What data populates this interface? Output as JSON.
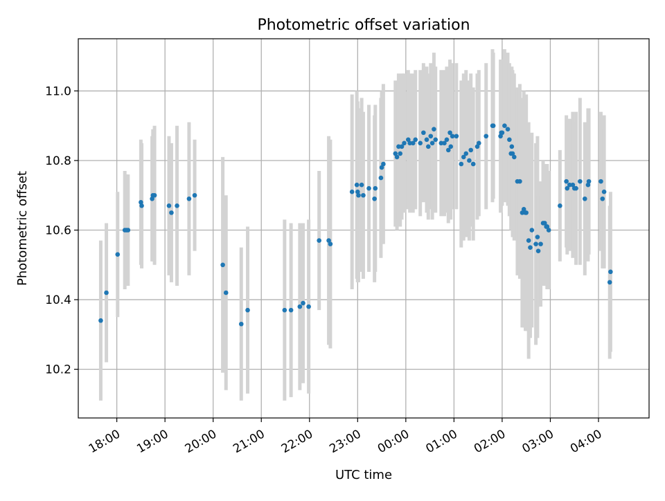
{
  "chart_data": {
    "type": "scatter",
    "title": "Photometric offset variation",
    "xlabel": "UTC time",
    "ylabel": "Photometric offset",
    "x_tick_labels": [
      "18:00",
      "19:00",
      "20:00",
      "21:00",
      "22:00",
      "23:00",
      "00:00",
      "01:00",
      "02:00",
      "03:00",
      "04:00"
    ],
    "y_tick_labels": [
      "10.2",
      "10.4",
      "10.6",
      "10.8",
      "11.0"
    ],
    "y_ticks": [
      10.2,
      10.4,
      10.6,
      10.8,
      11.0
    ],
    "xlim": [
      "17:12",
      "05:03"
    ],
    "ylim": [
      10.06,
      11.15
    ],
    "grid": true,
    "colors": {
      "points": "#1f77b4",
      "errorbars": "#d3d3d3",
      "grid": "#b0b0b0"
    },
    "series": [
      {
        "points": [
          [
            "17:40",
            10.34,
            0.23
          ],
          [
            "17:47",
            10.42,
            0.2
          ],
          [
            "18:01",
            10.53,
            0.18
          ],
          [
            "18:10",
            10.6,
            0.17
          ],
          [
            "18:12",
            10.6,
            0.16
          ],
          [
            "18:14",
            10.6,
            0.16
          ],
          [
            "18:30",
            10.68,
            0.18
          ],
          [
            "18:31",
            10.67,
            0.18
          ],
          [
            "18:44",
            10.69,
            0.18
          ],
          [
            "18:45",
            10.7,
            0.19
          ],
          [
            "18:47",
            10.7,
            0.2
          ],
          [
            "19:05",
            10.67,
            0.2
          ],
          [
            "19:08",
            10.65,
            0.2
          ],
          [
            "19:15",
            10.67,
            0.23
          ],
          [
            "19:30",
            10.69,
            0.22
          ],
          [
            "19:37",
            10.7,
            0.16
          ],
          [
            "20:12",
            10.5,
            0.31
          ],
          [
            "20:16",
            10.42,
            0.28
          ],
          [
            "20:35",
            10.33,
            0.22
          ],
          [
            "20:43",
            10.37,
            0.24
          ],
          [
            "21:29",
            10.37,
            0.26
          ],
          [
            "21:37",
            10.37,
            0.25
          ],
          [
            "21:48",
            10.38,
            0.24
          ],
          [
            "21:52",
            10.39,
            0.23
          ],
          [
            "21:59",
            10.38,
            0.25
          ],
          [
            "22:12",
            10.57,
            0.2
          ],
          [
            "22:24",
            10.57,
            0.3
          ],
          [
            "22:26",
            10.56,
            0.3
          ],
          [
            "22:53",
            10.71,
            0.28
          ],
          [
            "22:59",
            10.73,
            0.27
          ],
          [
            "23:00",
            10.71,
            0.26
          ],
          [
            "23:01",
            10.7,
            0.25
          ],
          [
            "23:05",
            10.73,
            0.25
          ],
          [
            "23:07",
            10.7,
            0.24
          ],
          [
            "23:14",
            10.72,
            0.24
          ],
          [
            "23:21",
            10.69,
            0.24
          ],
          [
            "23:22",
            10.72,
            0.24
          ],
          [
            "23:29",
            10.75,
            0.23
          ],
          [
            "23:32",
            10.79,
            0.23
          ],
          [
            "23:30",
            10.78,
            0.22
          ],
          [
            "23:47",
            10.82,
            0.21
          ],
          [
            "23:49",
            10.81,
            0.21
          ],
          [
            "23:51",
            10.84,
            0.21
          ],
          [
            "23:53",
            10.82,
            0.21
          ],
          [
            "23:55",
            10.84,
            0.21
          ],
          [
            "23:58",
            10.85,
            0.2
          ],
          [
            "00:03",
            10.86,
            0.2
          ],
          [
            "00:05",
            10.85,
            0.2
          ],
          [
            "00:09",
            10.85,
            0.2
          ],
          [
            "00:12",
            10.86,
            0.2
          ],
          [
            "00:18",
            10.85,
            0.21
          ],
          [
            "00:22",
            10.88,
            0.2
          ],
          [
            "00:26",
            10.86,
            0.21
          ],
          [
            "00:28",
            10.84,
            0.21
          ],
          [
            "00:31",
            10.87,
            0.21
          ],
          [
            "00:33",
            10.85,
            0.22
          ],
          [
            "00:35",
            10.89,
            0.22
          ],
          [
            "00:37",
            10.86,
            0.21
          ],
          [
            "00:44",
            10.85,
            0.21
          ],
          [
            "00:48",
            10.85,
            0.21
          ],
          [
            "00:51",
            10.86,
            0.21
          ],
          [
            "00:53",
            10.83,
            0.21
          ],
          [
            "00:55",
            10.88,
            0.21
          ],
          [
            "00:56",
            10.84,
            0.21
          ],
          [
            "00:58",
            10.87,
            0.21
          ],
          [
            "01:03",
            10.87,
            0.21
          ],
          [
            "01:09",
            10.79,
            0.24
          ],
          [
            "01:12",
            10.81,
            0.24
          ],
          [
            "01:15",
            10.82,
            0.24
          ],
          [
            "01:19",
            10.8,
            0.23
          ],
          [
            "01:21",
            10.83,
            0.22
          ],
          [
            "01:24",
            10.79,
            0.22
          ],
          [
            "01:29",
            10.84,
            0.21
          ],
          [
            "01:31",
            10.85,
            0.21
          ],
          [
            "01:40",
            10.87,
            0.21
          ],
          [
            "01:48",
            10.9,
            0.22
          ],
          [
            "01:49",
            10.9,
            0.21
          ],
          [
            "01:58",
            10.87,
            0.22
          ],
          [
            "01:59",
            10.88,
            0.21
          ],
          [
            "02:00",
            10.88,
            0.21
          ],
          [
            "02:03",
            10.9,
            0.22
          ],
          [
            "02:07",
            10.89,
            0.22
          ],
          [
            "02:09",
            10.86,
            0.22
          ],
          [
            "02:11",
            10.82,
            0.22
          ],
          [
            "02:12",
            10.84,
            0.23
          ],
          [
            "02:13",
            10.82,
            0.24
          ],
          [
            "02:15",
            10.81,
            0.24
          ],
          [
            "02:19",
            10.74,
            0.27
          ],
          [
            "02:22",
            10.74,
            0.28
          ],
          [
            "02:25",
            10.65,
            0.33
          ],
          [
            "02:27",
            10.66,
            0.34
          ],
          [
            "02:29",
            10.65,
            0.34
          ],
          [
            "02:30",
            10.65,
            0.34
          ],
          [
            "02:33",
            10.57,
            0.34
          ],
          [
            "02:35",
            10.55,
            0.26
          ],
          [
            "02:37",
            10.6,
            0.28
          ],
          [
            "02:42",
            10.56,
            0.29
          ],
          [
            "02:44",
            10.58,
            0.29
          ],
          [
            "02:45",
            10.54,
            0.16
          ],
          [
            "02:48",
            10.56,
            0.18
          ],
          [
            "02:51",
            10.62,
            0.18
          ],
          [
            "02:53",
            10.62,
            0.17
          ],
          [
            "02:55",
            10.61,
            0.17
          ],
          [
            "02:56",
            10.61,
            0.18
          ],
          [
            "02:58",
            10.6,
            0.17
          ],
          [
            "03:12",
            10.67,
            0.16
          ],
          [
            "03:20",
            10.74,
            0.19
          ],
          [
            "03:21",
            10.72,
            0.19
          ],
          [
            "03:24",
            10.73,
            0.19
          ],
          [
            "03:28",
            10.73,
            0.21
          ],
          [
            "03:30",
            10.72,
            0.19
          ],
          [
            "03:32",
            10.72,
            0.22
          ],
          [
            "03:37",
            10.74,
            0.24
          ],
          [
            "03:43",
            10.69,
            0.22
          ],
          [
            "03:47",
            10.73,
            0.22
          ],
          [
            "03:48",
            10.74,
            0.21
          ],
          [
            "04:03",
            10.74,
            0.2
          ],
          [
            "04:05",
            10.69,
            0.2
          ],
          [
            "04:07",
            10.71,
            0.22
          ],
          [
            "04:14",
            10.45,
            0.22
          ],
          [
            "04:15",
            10.48,
            0.23
          ]
        ]
      }
    ]
  }
}
